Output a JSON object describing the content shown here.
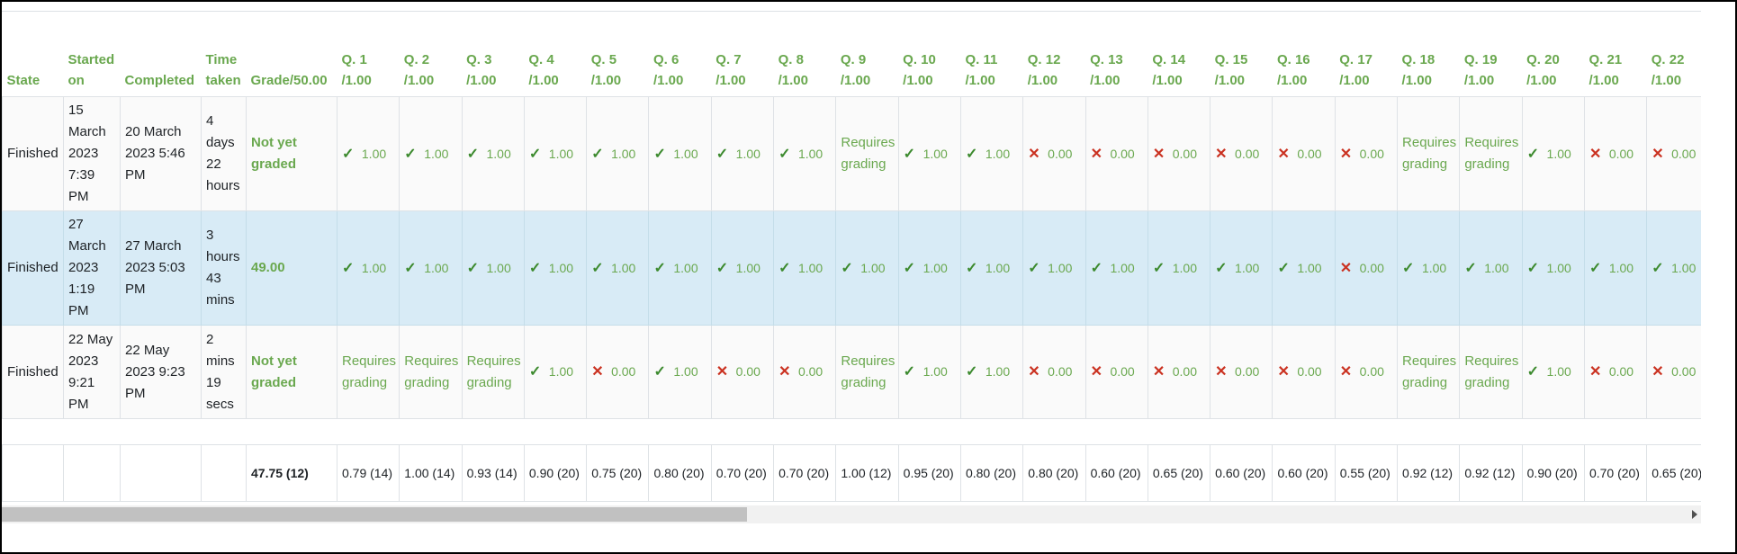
{
  "headers": {
    "state": "State",
    "started": "Started on",
    "completed": "Completed",
    "time": "Time taken",
    "grade": "Grade/50.00",
    "questions": [
      {
        "num": "Q. 1",
        "max": "/1.00"
      },
      {
        "num": "Q. 2",
        "max": "/1.00"
      },
      {
        "num": "Q. 3",
        "max": "/1.00"
      },
      {
        "num": "Q. 4",
        "max": "/1.00"
      },
      {
        "num": "Q. 5",
        "max": "/1.00"
      },
      {
        "num": "Q. 6",
        "max": "/1.00"
      },
      {
        "num": "Q. 7",
        "max": "/1.00"
      },
      {
        "num": "Q. 8",
        "max": "/1.00"
      },
      {
        "num": "Q. 9",
        "max": "/1.00"
      },
      {
        "num": "Q. 10",
        "max": "/1.00"
      },
      {
        "num": "Q. 11",
        "max": "/1.00"
      },
      {
        "num": "Q. 12",
        "max": "/1.00"
      },
      {
        "num": "Q. 13",
        "max": "/1.00"
      },
      {
        "num": "Q. 14",
        "max": "/1.00"
      },
      {
        "num": "Q. 15",
        "max": "/1.00"
      },
      {
        "num": "Q. 16",
        "max": "/1.00"
      },
      {
        "num": "Q. 17",
        "max": "/1.00"
      },
      {
        "num": "Q. 18",
        "max": "/1.00"
      },
      {
        "num": "Q. 19",
        "max": "/1.00"
      },
      {
        "num": "Q. 20",
        "max": "/1.00"
      },
      {
        "num": "Q. 21",
        "max": "/1.00"
      },
      {
        "num": "Q. 22",
        "max": "/1.00"
      }
    ]
  },
  "rows": [
    {
      "prefix": "n",
      "state": "Finished",
      "started": "15 March 2023 7:39 PM",
      "completed": "20 March 2023 5:46 PM",
      "time": "4 days 22 hours",
      "grade": "Not yet graded",
      "questions": [
        {
          "s": "ok",
          "v": "1.00"
        },
        {
          "s": "ok",
          "v": "1.00"
        },
        {
          "s": "ok",
          "v": "1.00"
        },
        {
          "s": "ok",
          "v": "1.00"
        },
        {
          "s": "ok",
          "v": "1.00"
        },
        {
          "s": "ok",
          "v": "1.00"
        },
        {
          "s": "ok",
          "v": "1.00"
        },
        {
          "s": "ok",
          "v": "1.00"
        },
        {
          "s": "req",
          "v": "Requires grading"
        },
        {
          "s": "ok",
          "v": "1.00"
        },
        {
          "s": "ok",
          "v": "1.00"
        },
        {
          "s": "bad",
          "v": "0.00"
        },
        {
          "s": "bad",
          "v": "0.00"
        },
        {
          "s": "bad",
          "v": "0.00"
        },
        {
          "s": "bad",
          "v": "0.00"
        },
        {
          "s": "bad",
          "v": "0.00"
        },
        {
          "s": "bad",
          "v": "0.00"
        },
        {
          "s": "req",
          "v": "Requires grading"
        },
        {
          "s": "req",
          "v": "Requires grading"
        },
        {
          "s": "ok",
          "v": "1.00"
        },
        {
          "s": "bad",
          "v": "0.00"
        },
        {
          "s": "bad",
          "v": "0.00"
        }
      ]
    },
    {
      "prefix": "",
      "state": "Finished",
      "started": "27 March 2023 1:19 PM",
      "completed": "27 March 2023 5:03 PM",
      "time": "3 hours 43 mins",
      "grade": "49.00",
      "questions": [
        {
          "s": "ok",
          "v": "1.00"
        },
        {
          "s": "ok",
          "v": "1.00"
        },
        {
          "s": "ok",
          "v": "1.00"
        },
        {
          "s": "ok",
          "v": "1.00"
        },
        {
          "s": "ok",
          "v": "1.00"
        },
        {
          "s": "ok",
          "v": "1.00"
        },
        {
          "s": "ok",
          "v": "1.00"
        },
        {
          "s": "ok",
          "v": "1.00"
        },
        {
          "s": "ok",
          "v": "1.00"
        },
        {
          "s": "ok",
          "v": "1.00"
        },
        {
          "s": "ok",
          "v": "1.00"
        },
        {
          "s": "ok",
          "v": "1.00"
        },
        {
          "s": "ok",
          "v": "1.00"
        },
        {
          "s": "ok",
          "v": "1.00"
        },
        {
          "s": "ok",
          "v": "1.00"
        },
        {
          "s": "ok",
          "v": "1.00"
        },
        {
          "s": "bad",
          "v": "0.00"
        },
        {
          "s": "ok",
          "v": "1.00"
        },
        {
          "s": "ok",
          "v": "1.00"
        },
        {
          "s": "ok",
          "v": "1.00"
        },
        {
          "s": "ok",
          "v": "1.00"
        },
        {
          "s": "ok",
          "v": "1.00"
        }
      ]
    },
    {
      "prefix": "",
      "state": "Finished",
      "started": "22 May 2023 9:21 PM",
      "completed": "22 May 2023 9:23 PM",
      "time": "2 mins 19 secs",
      "grade": "Not yet graded",
      "questions": [
        {
          "s": "req",
          "v": "Requires grading"
        },
        {
          "s": "req",
          "v": "Requires grading"
        },
        {
          "s": "req",
          "v": "Requires grading"
        },
        {
          "s": "ok",
          "v": "1.00"
        },
        {
          "s": "bad",
          "v": "0.00"
        },
        {
          "s": "ok",
          "v": "1.00"
        },
        {
          "s": "bad",
          "v": "0.00"
        },
        {
          "s": "bad",
          "v": "0.00"
        },
        {
          "s": "req",
          "v": "Requires grading"
        },
        {
          "s": "ok",
          "v": "1.00"
        },
        {
          "s": "ok",
          "v": "1.00"
        },
        {
          "s": "bad",
          "v": "0.00"
        },
        {
          "s": "bad",
          "v": "0.00"
        },
        {
          "s": "bad",
          "v": "0.00"
        },
        {
          "s": "bad",
          "v": "0.00"
        },
        {
          "s": "bad",
          "v": "0.00"
        },
        {
          "s": "bad",
          "v": "0.00"
        },
        {
          "s": "req",
          "v": "Requires grading"
        },
        {
          "s": "req",
          "v": "Requires grading"
        },
        {
          "s": "ok",
          "v": "1.00"
        },
        {
          "s": "bad",
          "v": "0.00"
        },
        {
          "s": "bad",
          "v": "0.00"
        }
      ]
    }
  ],
  "averages": {
    "grade": "47.75 (12)",
    "questions": [
      "0.79 (14)",
      "1.00 (14)",
      "0.93 (14)",
      "0.90 (20)",
      "0.75 (20)",
      "0.80 (20)",
      "0.70 (20)",
      "0.70 (20)",
      "1.00 (12)",
      "0.95 (20)",
      "0.80 (20)",
      "0.80 (20)",
      "0.60 (20)",
      "0.65 (20)",
      "0.60 (20)",
      "0.60 (20)",
      "0.55 (20)",
      "0.92 (12)",
      "0.92 (12)",
      "0.90 (20)",
      "0.70 (20)",
      "0.65 (20)"
    ]
  },
  "colors": {
    "accent_green": "#6aa84f",
    "correct_green": "#3c8a2e",
    "incorrect_red": "#ca3120",
    "highlight_row": "#d8ebf6"
  },
  "icons": {
    "correct": "check-icon",
    "incorrect": "cross-icon"
  }
}
